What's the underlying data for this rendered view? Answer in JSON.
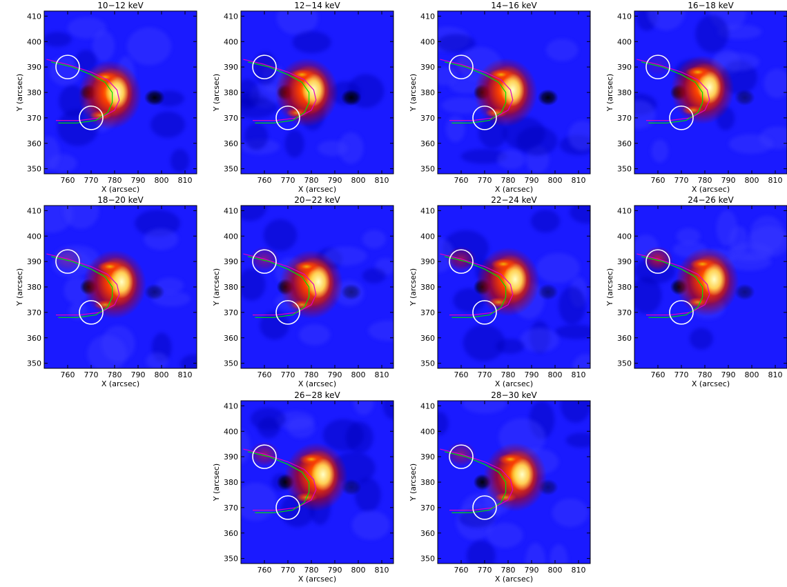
{
  "figure": {
    "xlabel": "X (arcsec)",
    "ylabel": "Y (arcsec)",
    "panel_titles": [
      "10−12 keV",
      "12−14 keV",
      "14−16 keV",
      "16−18 keV",
      "18−20 keV",
      "20−22 keV",
      "22−24 keV",
      "24−26 keV",
      "26−28 keV",
      "28−30 keV"
    ]
  },
  "colors": {
    "background_blue": "#1a1aff",
    "source_core": "#ffffc8",
    "source_mid": "#ff4400",
    "source_outer": "#b00010",
    "magenta_loop": "#e000c0",
    "green_loop": "#00e000",
    "circle": "#ffffff"
  },
  "chart_data": [
    {
      "type": "heatmap",
      "title": "10−12 keV",
      "xlabel": "X (arcsec)",
      "ylabel": "Y (arcsec)",
      "xlim": [
        750,
        815
      ],
      "ylim": [
        348,
        412
      ],
      "xticks": [
        760,
        770,
        780,
        790,
        800,
        810
      ],
      "yticks": [
        350,
        360,
        370,
        380,
        390,
        400,
        410
      ],
      "source_peak": [
        780,
        380
      ],
      "footpoint_brightness": 0.0,
      "circles": [
        {
          "center": [
            760,
            390
          ],
          "radius": 5
        },
        {
          "center": [
            770,
            370
          ],
          "radius": 5
        }
      ]
    },
    {
      "type": "heatmap",
      "title": "12−14 keV",
      "xlabel": "X (arcsec)",
      "ylabel": "Y (arcsec)",
      "xlim": [
        750,
        815
      ],
      "ylim": [
        348,
        412
      ],
      "xticks": [
        760,
        770,
        780,
        790,
        800,
        810
      ],
      "yticks": [
        350,
        360,
        370,
        380,
        390,
        400,
        410
      ],
      "source_peak": [
        780,
        381
      ],
      "footpoint_brightness": 0.05,
      "circles": [
        {
          "center": [
            760,
            390
          ],
          "radius": 5
        },
        {
          "center": [
            770,
            370
          ],
          "radius": 5
        }
      ]
    },
    {
      "type": "heatmap",
      "title": "14−16 keV",
      "xlabel": "X (arcsec)",
      "ylabel": "Y (arcsec)",
      "xlim": [
        750,
        815
      ],
      "ylim": [
        348,
        412
      ],
      "xticks": [
        760,
        770,
        780,
        790,
        800,
        810
      ],
      "yticks": [
        350,
        360,
        370,
        380,
        390,
        400,
        410
      ],
      "source_peak": [
        781,
        381
      ],
      "footpoint_brightness": 0.1,
      "circles": [
        {
          "center": [
            760,
            390
          ],
          "radius": 5
        },
        {
          "center": [
            770,
            370
          ],
          "radius": 5
        }
      ]
    },
    {
      "type": "heatmap",
      "title": "16−18 keV",
      "xlabel": "X (arcsec)",
      "ylabel": "Y (arcsec)",
      "xlim": [
        750,
        815
      ],
      "ylim": [
        348,
        412
      ],
      "xticks": [
        760,
        770,
        780,
        790,
        800,
        810
      ],
      "yticks": [
        350,
        360,
        370,
        380,
        390,
        400,
        410
      ],
      "source_peak": [
        781,
        382
      ],
      "footpoint_brightness": 0.15,
      "circles": [
        {
          "center": [
            760,
            390
          ],
          "radius": 5
        },
        {
          "center": [
            770,
            370
          ],
          "radius": 5
        }
      ]
    },
    {
      "type": "heatmap",
      "title": "18−20 keV",
      "xlabel": "X (arcsec)",
      "ylabel": "Y (arcsec)",
      "xlim": [
        750,
        815
      ],
      "ylim": [
        348,
        412
      ],
      "xticks": [
        760,
        770,
        780,
        790,
        800,
        810
      ],
      "yticks": [
        350,
        360,
        370,
        380,
        390,
        400,
        410
      ],
      "source_peak": [
        782,
        382
      ],
      "footpoint_brightness": 0.3,
      "circles": [
        {
          "center": [
            760,
            390
          ],
          "radius": 5
        },
        {
          "center": [
            770,
            370
          ],
          "radius": 5
        }
      ]
    },
    {
      "type": "heatmap",
      "title": "20−22 keV",
      "xlabel": "X (arcsec)",
      "ylabel": "Y (arcsec)",
      "xlim": [
        750,
        815
      ],
      "ylim": [
        348,
        412
      ],
      "xticks": [
        760,
        770,
        780,
        790,
        800,
        810
      ],
      "yticks": [
        350,
        360,
        370,
        380,
        390,
        400,
        410
      ],
      "source_peak": [
        782,
        382
      ],
      "footpoint_brightness": 0.45,
      "circles": [
        {
          "center": [
            760,
            390
          ],
          "radius": 5
        },
        {
          "center": [
            770,
            370
          ],
          "radius": 5
        }
      ]
    },
    {
      "type": "heatmap",
      "title": "22−24 keV",
      "xlabel": "X (arcsec)",
      "ylabel": "Y (arcsec)",
      "xlim": [
        750,
        815
      ],
      "ylim": [
        348,
        412
      ],
      "xticks": [
        760,
        770,
        780,
        790,
        800,
        810
      ],
      "yticks": [
        350,
        360,
        370,
        380,
        390,
        400,
        410
      ],
      "source_peak": [
        782,
        383
      ],
      "footpoint_brightness": 0.6,
      "circles": [
        {
          "center": [
            760,
            390
          ],
          "radius": 5
        },
        {
          "center": [
            770,
            370
          ],
          "radius": 5
        }
      ]
    },
    {
      "type": "heatmap",
      "title": "24−26 keV",
      "xlabel": "X (arcsec)",
      "ylabel": "Y (arcsec)",
      "xlim": [
        750,
        815
      ],
      "ylim": [
        348,
        412
      ],
      "xticks": [
        760,
        770,
        780,
        790,
        800,
        810
      ],
      "yticks": [
        350,
        360,
        370,
        380,
        390,
        400,
        410
      ],
      "source_peak": [
        783,
        383
      ],
      "footpoint_brightness": 0.75,
      "circles": [
        {
          "center": [
            760,
            390
          ],
          "radius": 5
        },
        {
          "center": [
            770,
            370
          ],
          "radius": 5
        }
      ]
    },
    {
      "type": "heatmap",
      "title": "26−28 keV",
      "xlabel": "X (arcsec)",
      "ylabel": "Y (arcsec)",
      "xlim": [
        750,
        815
      ],
      "ylim": [
        348,
        412
      ],
      "xticks": [
        760,
        770,
        780,
        790,
        800,
        810
      ],
      "yticks": [
        350,
        360,
        370,
        380,
        390,
        400,
        410
      ],
      "source_peak": [
        784,
        383
      ],
      "footpoint_brightness": 0.55,
      "circles": [
        {
          "center": [
            760,
            390
          ],
          "radius": 5
        },
        {
          "center": [
            770,
            370
          ],
          "radius": 5
        }
      ]
    },
    {
      "type": "heatmap",
      "title": "28−30 keV",
      "xlabel": "X (arcsec)",
      "ylabel": "Y (arcsec)",
      "xlim": [
        750,
        815
      ],
      "ylim": [
        348,
        412
      ],
      "xticks": [
        760,
        770,
        780,
        790,
        800,
        810
      ],
      "yticks": [
        350,
        360,
        370,
        380,
        390,
        400,
        410
      ],
      "source_peak": [
        785,
        383
      ],
      "footpoint_brightness": 0.5,
      "circles": [
        {
          "center": [
            760,
            390
          ],
          "radius": 5
        },
        {
          "center": [
            770,
            370
          ],
          "radius": 5
        }
      ]
    }
  ],
  "loops": {
    "magenta": [
      [
        751,
        393
      ],
      [
        760,
        391
      ],
      [
        770,
        388
      ],
      [
        777,
        385
      ],
      [
        781,
        381
      ],
      [
        782,
        377
      ],
      [
        780,
        373
      ],
      [
        774,
        370
      ],
      [
        765,
        369
      ],
      [
        755,
        369
      ]
    ],
    "green": [
      [
        753,
        392
      ],
      [
        762,
        390
      ],
      [
        770,
        387
      ],
      [
        776,
        384
      ],
      [
        779,
        380
      ],
      [
        779,
        376
      ],
      [
        777,
        372
      ],
      [
        772,
        369
      ],
      [
        764,
        368
      ],
      [
        756,
        368
      ]
    ]
  }
}
